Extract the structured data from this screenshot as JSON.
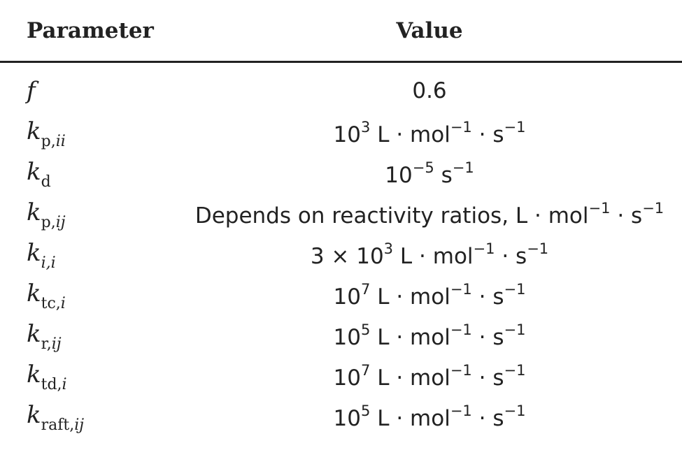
{
  "table": {
    "header": [
      "Parameter",
      "Value"
    ],
    "rows": [
      {
        "param": {
          "main": "f",
          "sub": []
        },
        "value": [
          {
            "text": "0.6"
          }
        ]
      },
      {
        "param": {
          "main": "k",
          "sub": [
            {
              "roman": "p,"
            },
            {
              "italic": "ii"
            }
          ]
        },
        "value": [
          {
            "text": "10"
          },
          {
            "sup": "3"
          },
          {
            "text": " L · mol"
          },
          {
            "sup": "−1"
          },
          {
            "text": " · s"
          },
          {
            "sup": "−1"
          }
        ]
      },
      {
        "param": {
          "main": "k",
          "sub": [
            {
              "roman": "d"
            }
          ]
        },
        "value": [
          {
            "text": "10"
          },
          {
            "sup": "−5"
          },
          {
            "text": " s"
          },
          {
            "sup": "−1"
          }
        ]
      },
      {
        "param": {
          "main": "k",
          "sub": [
            {
              "roman": "p,"
            },
            {
              "italic": "ij"
            }
          ]
        },
        "value": [
          {
            "text": "Depends on reactivity ratios, L · mol"
          },
          {
            "sup": "−1"
          },
          {
            "text": " · s"
          },
          {
            "sup": "−1"
          }
        ]
      },
      {
        "param": {
          "main": "k",
          "sub": [
            {
              "italic": "i,i"
            }
          ]
        },
        "value": [
          {
            "text": "3 × 10"
          },
          {
            "sup": "3"
          },
          {
            "text": " L · mol"
          },
          {
            "sup": "−1"
          },
          {
            "text": " · s"
          },
          {
            "sup": "−1"
          }
        ]
      },
      {
        "param": {
          "main": "k",
          "sub": [
            {
              "roman": "tc,"
            },
            {
              "italic": "i"
            }
          ]
        },
        "value": [
          {
            "text": "10"
          },
          {
            "sup": "7"
          },
          {
            "text": " L · mol"
          },
          {
            "sup": "−1"
          },
          {
            "text": " · s"
          },
          {
            "sup": "−1"
          }
        ]
      },
      {
        "param": {
          "main": "k",
          "sub": [
            {
              "roman": "r,"
            },
            {
              "italic": "ij"
            }
          ]
        },
        "value": [
          {
            "text": "10"
          },
          {
            "sup": "5"
          },
          {
            "text": " L · mol"
          },
          {
            "sup": "−1"
          },
          {
            "text": " · s"
          },
          {
            "sup": "−1"
          }
        ]
      },
      {
        "param": {
          "main": "k",
          "sub": [
            {
              "roman": "td,"
            },
            {
              "italic": "i"
            }
          ]
        },
        "value": [
          {
            "text": "10"
          },
          {
            "sup": "7"
          },
          {
            "text": " L · mol"
          },
          {
            "sup": "−1"
          },
          {
            "text": " · s"
          },
          {
            "sup": "−1"
          }
        ]
      },
      {
        "param": {
          "main": "k",
          "sub": [
            {
              "roman": "raft,"
            },
            {
              "italic": "ij"
            }
          ]
        },
        "value": [
          {
            "text": "10"
          },
          {
            "sup": "5"
          },
          {
            "text": " L · mol"
          },
          {
            "sup": "−1"
          },
          {
            "text": " · s"
          },
          {
            "sup": "−1"
          }
        ]
      }
    ]
  }
}
